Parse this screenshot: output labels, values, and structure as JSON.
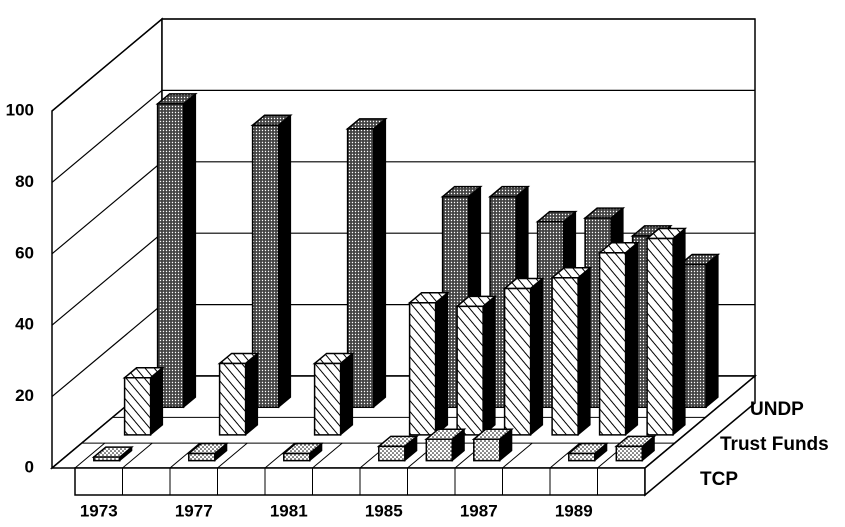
{
  "chart_data": {
    "type": "bar3d",
    "categories": [
      "1973",
      null,
      "1977",
      null,
      "1981",
      null,
      "1985",
      null,
      "1987",
      null,
      "1989",
      null
    ],
    "series": [
      {
        "name": "TCP",
        "color": "#000000",
        "pattern": "light-dots",
        "values": [
          1,
          null,
          2,
          null,
          2,
          null,
          4,
          6,
          6,
          null,
          2,
          4
        ]
      },
      {
        "name": "Trust Funds",
        "color": "#000000",
        "pattern": "hatch",
        "values": [
          16,
          null,
          20,
          null,
          20,
          null,
          37,
          36,
          41,
          44,
          51,
          55
        ]
      },
      {
        "name": "UNDP",
        "color": "#000000",
        "pattern": "dark-dots",
        "values": [
          85,
          null,
          79,
          null,
          78,
          null,
          59,
          59,
          52,
          53,
          48,
          40
        ]
      }
    ],
    "ylim": [
      0,
      100
    ],
    "yticks": [
      0,
      20,
      40,
      60,
      80,
      100
    ],
    "grid": true
  }
}
